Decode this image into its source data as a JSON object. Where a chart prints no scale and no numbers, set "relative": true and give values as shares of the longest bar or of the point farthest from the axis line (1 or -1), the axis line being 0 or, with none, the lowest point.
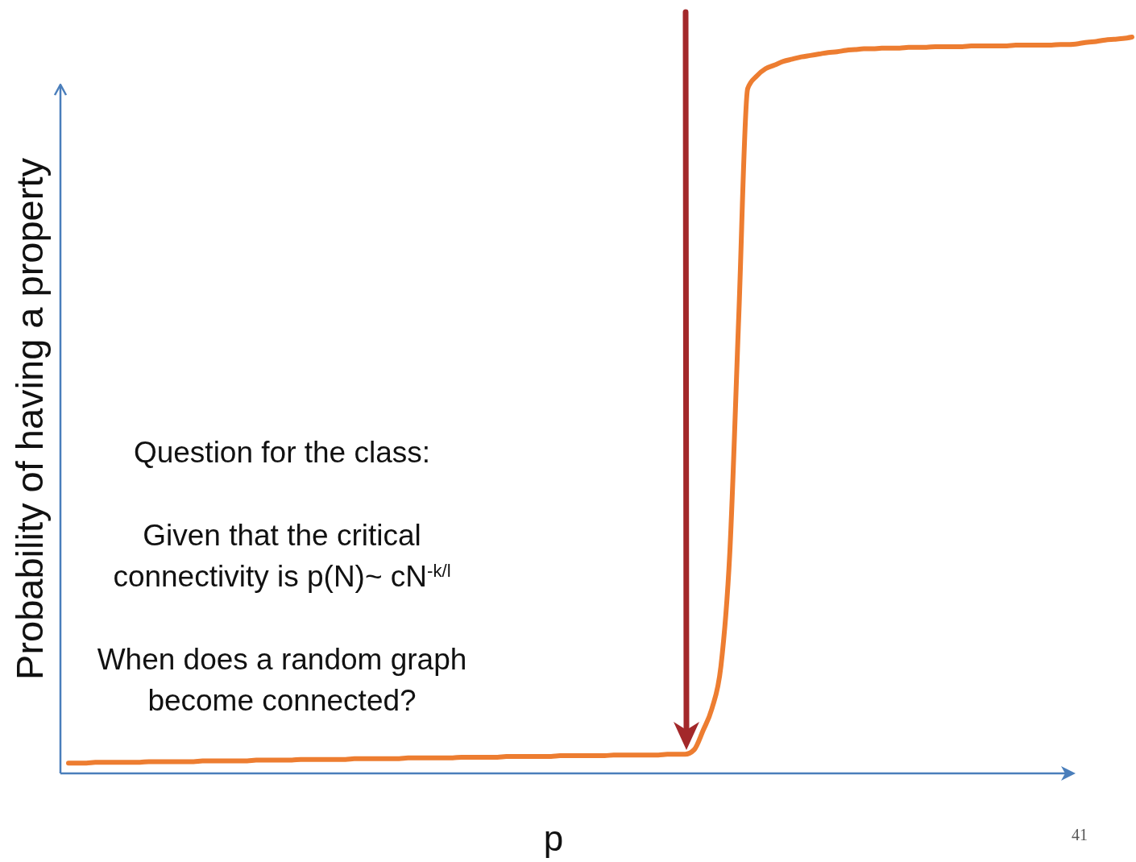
{
  "chart_data": {
    "type": "line",
    "xlabel": "p",
    "ylabel": "Probability of having a property",
    "annotations": [
      "Question for the class:",
      "Given that the critical\nconnectivity is p(N)~ cN$^{-k/l}$",
      "When does a random graph\nbecome connected?",
      "41"
    ],
    "categories": [
      null,
      null,
      null,
      null,
      null,
      null,
      null,
      null,
      null,
      null,
      null,
      null,
      null,
      null,
      null,
      null,
      null,
      null,
      null,
      null,
      null,
      null,
      null,
      null,
      null,
      null,
      null,
      null,
      null,
      null,
      null,
      null,
      null,
      null,
      null,
      null,
      null,
      null,
      null,
      null,
      null,
      null,
      null,
      null,
      null,
      null,
      null,
      null,
      null,
      null,
      null,
      null,
      null,
      null,
      null,
      null,
      null,
      null,
      null,
      null,
      null,
      null,
      null,
      null,
      null,
      null,
      null,
      null,
      null,
      null,
      null,
      null,
      null,
      null,
      null,
      null,
      null,
      null,
      null,
      null,
      null,
      null,
      null,
      null,
      null,
      null,
      null,
      null,
      null,
      null,
      null,
      null,
      null,
      null,
      null,
      null,
      null,
      null,
      null,
      null,
      null,
      null,
      null,
      null,
      null,
      null,
      null,
      null,
      null,
      null,
      null,
      null,
      null,
      null,
      null,
      null,
      null,
      null,
      null,
      null
    ],
    "values": [
      0.014,
      0.014,
      0.014,
      0.015,
      0.015,
      0.015,
      0.015,
      0.015,
      0.015,
      0.016,
      0.016,
      0.016,
      0.016,
      0.016,
      0.016,
      0.017,
      0.017,
      0.017,
      0.017,
      0.017,
      0.017,
      0.018,
      0.018,
      0.018,
      0.018,
      0.018,
      0.019,
      0.019,
      0.019,
      0.019,
      0.019,
      0.019,
      0.02,
      0.02,
      0.02,
      0.02,
      0.02,
      0.02,
      0.021,
      0.021,
      0.021,
      0.021,
      0.021,
      0.021,
      0.022,
      0.022,
      0.022,
      0.022,
      0.022,
      0.023,
      0.023,
      0.023,
      0.023,
      0.023,
      0.023,
      0.024,
      0.024,
      0.024,
      0.024,
      0.024,
      0.024,
      0.025,
      0.025,
      0.025,
      0.025,
      0.025,
      0.025,
      0.026,
      0.026,
      0.026,
      0.032,
      0.058,
      0.088,
      0.145,
      0.3,
      0.62,
      0.93,
      0.947,
      0.957,
      0.962,
      0.967,
      0.97,
      0.973,
      0.975,
      0.977,
      0.979,
      0.98,
      0.982,
      0.983,
      0.984,
      0.984,
      0.985,
      0.985,
      0.985,
      0.986,
      0.986,
      0.986,
      0.987,
      0.987,
      0.987,
      0.987,
      0.988,
      0.988,
      0.988,
      0.988,
      0.988,
      0.989,
      0.989,
      0.989,
      0.989,
      0.989,
      0.99,
      0.99,
      0.991,
      0.993,
      0.994,
      0.996,
      0.997,
      0.998,
      1
    ],
    "color": "#ed7d31",
    "relative": true
  }
}
